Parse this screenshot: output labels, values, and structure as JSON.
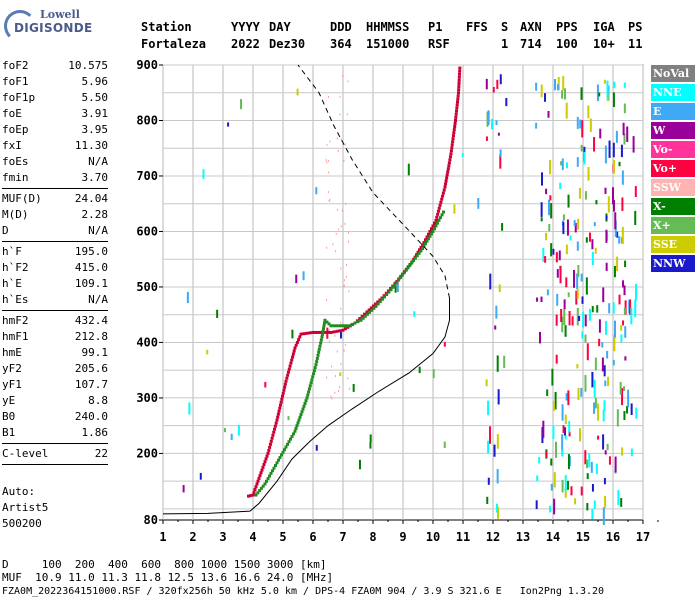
{
  "logo": {
    "line1": "Lowell",
    "line2": "DIGISONDE"
  },
  "header": {
    "labels": [
      "Station",
      "YYYY",
      "DAY",
      "DDD",
      "HHMMSS",
      "P1",
      "FFS",
      "S",
      "AXN",
      "PPS",
      "IGA",
      "PS"
    ],
    "values": [
      "Fortaleza",
      "2022",
      "Dez30",
      "364",
      "151000",
      "RSF",
      "1",
      "714",
      "100",
      "10+",
      "11"
    ]
  },
  "params": {
    "group1": [
      {
        "k": "foF2",
        "v": "10.575"
      },
      {
        "k": "foF1",
        "v": "5.96"
      },
      {
        "k": "foF1p",
        "v": "5.50"
      },
      {
        "k": "foE",
        "v": "3.91"
      },
      {
        "k": "foEp",
        "v": "3.95"
      },
      {
        "k": "fxI",
        "v": "11.30"
      },
      {
        "k": "foEs",
        "v": "N/A"
      },
      {
        "k": "fmin",
        "v": "3.70"
      }
    ],
    "group2": [
      {
        "k": "MUF(D)",
        "v": "24.04"
      },
      {
        "k": "M(D)",
        "v": "2.28"
      },
      {
        "k": "D",
        "v": "N/A"
      }
    ],
    "group3": [
      {
        "k": "h`F",
        "v": "195.0"
      },
      {
        "k": "h`F2",
        "v": "415.0"
      },
      {
        "k": "h`E",
        "v": "109.1"
      },
      {
        "k": "h`Es",
        "v": "N/A"
      }
    ],
    "group4": [
      {
        "k": "hmF2",
        "v": "432.4"
      },
      {
        "k": "hmF1",
        "v": "212.8"
      },
      {
        "k": "hmE",
        "v": "99.1"
      },
      {
        "k": "yF2",
        "v": "205.6"
      },
      {
        "k": "yF1",
        "v": "107.7"
      },
      {
        "k": "yE",
        "v": "8.8"
      },
      {
        "k": "B0",
        "v": "240.0"
      },
      {
        "k": "B1",
        "v": "1.86"
      }
    ],
    "group5": [
      {
        "k": "C-level",
        "v": "22"
      }
    ]
  },
  "auto": {
    "line1": "Auto:",
    "line2": "Artist5",
    "line3": "500200"
  },
  "legend": [
    {
      "label": "NoVal",
      "color": "#808080"
    },
    {
      "label": "NNE",
      "color": "#00ffff"
    },
    {
      "label": "E",
      "color": "#3fa9f5"
    },
    {
      "label": "W",
      "color": "#990099"
    },
    {
      "label": "Vo-",
      "color": "#ff3399"
    },
    {
      "label": "Vo+",
      "color": "#ff0040"
    },
    {
      "label": "SSW",
      "color": "#ffb3b3"
    },
    {
      "label": "X-",
      "color": "#008000"
    },
    {
      "label": "X+",
      "color": "#66bb55"
    },
    {
      "label": "SSE",
      "color": "#cccc00"
    },
    {
      "label": "NNW",
      "color": "#1a1acc"
    }
  ],
  "chart_data": {
    "type": "scatter",
    "xlim": [
      1,
      17
    ],
    "ylim": [
      80,
      900
    ],
    "xticks": [
      1,
      2,
      3,
      4,
      5,
      6,
      7,
      8,
      9,
      10,
      11,
      12,
      13,
      14,
      15,
      16,
      17
    ],
    "yticks": [
      80,
      200,
      300,
      400,
      500,
      600,
      700,
      800,
      900
    ],
    "grid": true,
    "series": [
      {
        "name": "Vo+",
        "color": "#cc0033",
        "points": [
          [
            3.85,
            123
          ],
          [
            4.0,
            125
          ],
          [
            4.5,
            200
          ],
          [
            4.8,
            260
          ],
          [
            5.1,
            330
          ],
          [
            5.4,
            390
          ],
          [
            5.6,
            415
          ],
          [
            6.0,
            418
          ],
          [
            6.6,
            418
          ],
          [
            7.0,
            422
          ],
          [
            7.4,
            435
          ],
          [
            7.8,
            455
          ],
          [
            8.3,
            480
          ],
          [
            8.8,
            510
          ],
          [
            9.3,
            545
          ],
          [
            9.7,
            580
          ],
          [
            10.1,
            620
          ],
          [
            10.4,
            680
          ],
          [
            10.6,
            740
          ],
          [
            10.75,
            800
          ],
          [
            10.85,
            850
          ],
          [
            10.9,
            900
          ]
        ]
      },
      {
        "name": "X-",
        "color": "#228b22",
        "points": [
          [
            4.1,
            125
          ],
          [
            4.4,
            145
          ],
          [
            5.4,
            240
          ],
          [
            5.8,
            300
          ],
          [
            6.1,
            360
          ],
          [
            6.3,
            410
          ],
          [
            6.4,
            440
          ],
          [
            6.6,
            430
          ],
          [
            7.2,
            430
          ],
          [
            7.6,
            440
          ],
          [
            8.1,
            465
          ],
          [
            8.6,
            495
          ],
          [
            9.1,
            530
          ],
          [
            9.6,
            565
          ],
          [
            10.0,
            600
          ],
          [
            10.4,
            640
          ]
        ]
      },
      {
        "name": "profile",
        "color": "#000000",
        "points": [
          [
            1.0,
            91
          ],
          [
            2.5,
            92
          ],
          [
            3.9,
            96
          ],
          [
            4.2,
            110
          ],
          [
            4.8,
            150
          ],
          [
            5.3,
            190
          ],
          [
            5.9,
            222
          ],
          [
            6.5,
            250
          ],
          [
            7.3,
            280
          ],
          [
            8.2,
            312
          ],
          [
            9.2,
            345
          ],
          [
            10.0,
            380
          ],
          [
            10.4,
            410
          ],
          [
            10.55,
            440
          ],
          [
            10.55,
            480
          ],
          [
            10.4,
            520
          ],
          [
            10.0,
            555
          ],
          [
            9.4,
            590
          ],
          [
            8.7,
            630
          ],
          [
            8.0,
            670
          ],
          [
            7.3,
            730
          ],
          [
            6.7,
            790
          ],
          [
            6.2,
            850
          ],
          [
            5.5,
            900
          ]
        ]
      }
    ],
    "d_row_label": "D",
    "d_values": [
      "100",
      "200",
      "400",
      "600",
      "800",
      "1000",
      "1500",
      "3000"
    ],
    "d_unit": "[km]",
    "muf_row_label": "MUF",
    "muf_values": [
      "10.9",
      "11.0",
      "11.3",
      "11.8",
      "12.5",
      "13.6",
      "16.6",
      "24.0"
    ],
    "muf_unit": "[MHz]"
  },
  "footer_line": "FZA0M_2022364151000.RSF / 320fx256h 50 kHz 5.0 km / DPS-4 FZA0M 904 / 3.9 S 321.6 E   Ion2Png 1.3.20"
}
